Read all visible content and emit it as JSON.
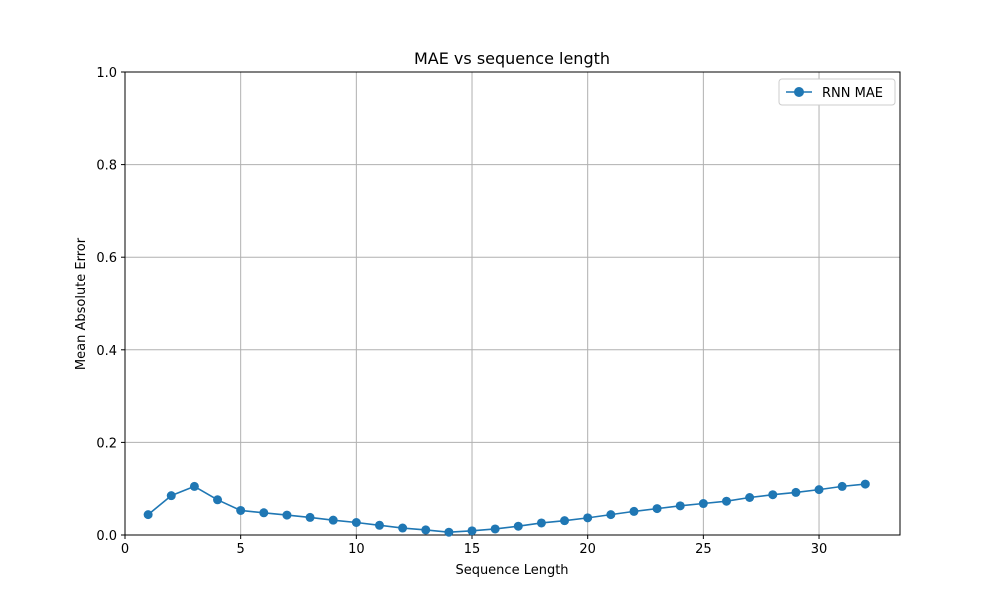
{
  "chart_data": {
    "type": "line",
    "title": "MAE vs sequence length",
    "xlabel": "Sequence Length",
    "ylabel": "Mean Absolute Error",
    "xlim": [
      0,
      33.5
    ],
    "ylim": [
      0,
      1.0
    ],
    "xticks": [
      0,
      5,
      10,
      15,
      20,
      25,
      30
    ],
    "yticks": [
      0.0,
      0.2,
      0.4,
      0.6,
      0.8,
      1.0
    ],
    "xtick_labels": [
      "0",
      "5",
      "10",
      "15",
      "20",
      "25",
      "30"
    ],
    "ytick_labels": [
      "0.0",
      "0.2",
      "0.4",
      "0.6",
      "0.8",
      "1.0"
    ],
    "grid": true,
    "legend": "top-right",
    "series": [
      {
        "name": "RNN MAE",
        "color": "#1f77b4",
        "marker": "circle",
        "x": [
          1,
          2,
          3,
          4,
          5,
          6,
          7,
          8,
          9,
          10,
          11,
          12,
          13,
          14,
          15,
          16,
          17,
          18,
          19,
          20,
          21,
          22,
          23,
          24,
          25,
          26,
          27,
          28,
          29,
          30,
          31,
          32
        ],
        "y": [
          0.044,
          0.085,
          0.105,
          0.076,
          0.053,
          0.048,
          0.043,
          0.038,
          0.032,
          0.027,
          0.021,
          0.015,
          0.011,
          0.006,
          0.009,
          0.013,
          0.019,
          0.026,
          0.031,
          0.037,
          0.044,
          0.051,
          0.057,
          0.063,
          0.068,
          0.073,
          0.081,
          0.087,
          0.092,
          0.098,
          0.105,
          0.11
        ]
      }
    ]
  }
}
